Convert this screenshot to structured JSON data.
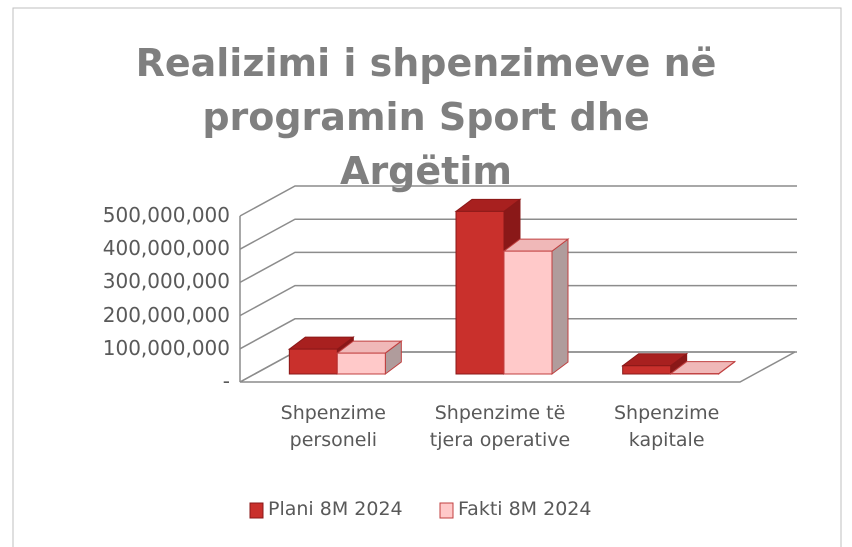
{
  "chart_data": {
    "type": "bar3d",
    "title": "Realizimi i shpenzimeve në programin Sport dhe Argëtim",
    "categories": [
      "Shpenzime personeli",
      "Shpenzime të tjera operative",
      "Shpenzime kapitale"
    ],
    "series": [
      {
        "name": "Plani 8M 2024",
        "color": "#c9302c",
        "values": [
          75000000,
          490000000,
          25000000
        ]
      },
      {
        "name": "Fakti 8M 2024",
        "color": "#ffc9c9",
        "values": [
          63000000,
          370000000,
          1000000
        ]
      }
    ],
    "ylim": [
      0,
      500000000
    ],
    "yticks": [
      {
        "value": 0,
        "label": "-"
      },
      {
        "value": 100000000,
        "label": "100,000,000"
      },
      {
        "value": 200000000,
        "label": "200,000,000"
      },
      {
        "value": 300000000,
        "label": "300,000,000"
      },
      {
        "value": 400000000,
        "label": "400,000,000"
      },
      {
        "value": 500000000,
        "label": "500,000,000"
      }
    ],
    "grid": true,
    "legend": "bottom"
  }
}
